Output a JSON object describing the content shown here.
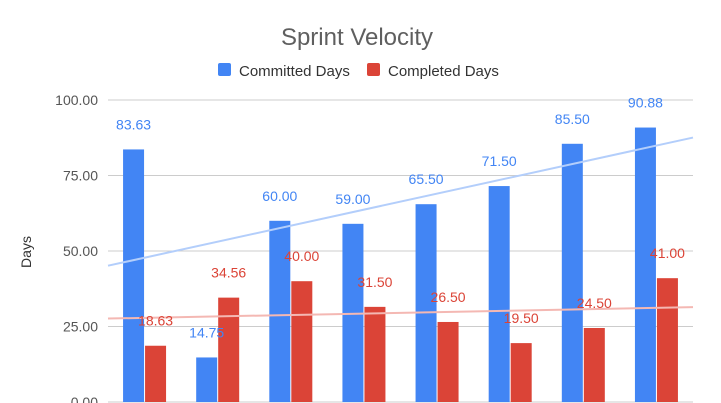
{
  "chart_data": {
    "type": "bar",
    "title": "Sprint Velocity",
    "xlabel": "",
    "ylabel": "Days",
    "ylim": [
      0,
      100
    ],
    "yticks": [
      "0.00",
      "25.00",
      "50.00",
      "75.00",
      "100.00"
    ],
    "grid": true,
    "legend_position": "top",
    "categories": [
      "",
      "",
      "",
      "",
      "",
      "",
      "",
      ""
    ],
    "series": [
      {
        "name": "Committed Days",
        "color": "#4285f4",
        "values": [
          83.63,
          14.75,
          60.0,
          59.0,
          65.5,
          71.5,
          85.5,
          90.88
        ],
        "labels": [
          "83.63",
          "14.75",
          "60.00",
          "59.00",
          "65.50",
          "71.50",
          "85.50",
          "90.88"
        ],
        "trendline_color": "#b3cefb"
      },
      {
        "name": "Completed Days",
        "color": "#db4437",
        "values": [
          18.63,
          34.56,
          40.0,
          31.5,
          26.5,
          19.5,
          24.5,
          41.0
        ],
        "labels": [
          "18.63",
          "34.56",
          "40.00",
          "31.50",
          "26.50",
          "19.50",
          "24.50",
          "41.00"
        ],
        "trendline_color": "#f4b8b3"
      }
    ]
  }
}
